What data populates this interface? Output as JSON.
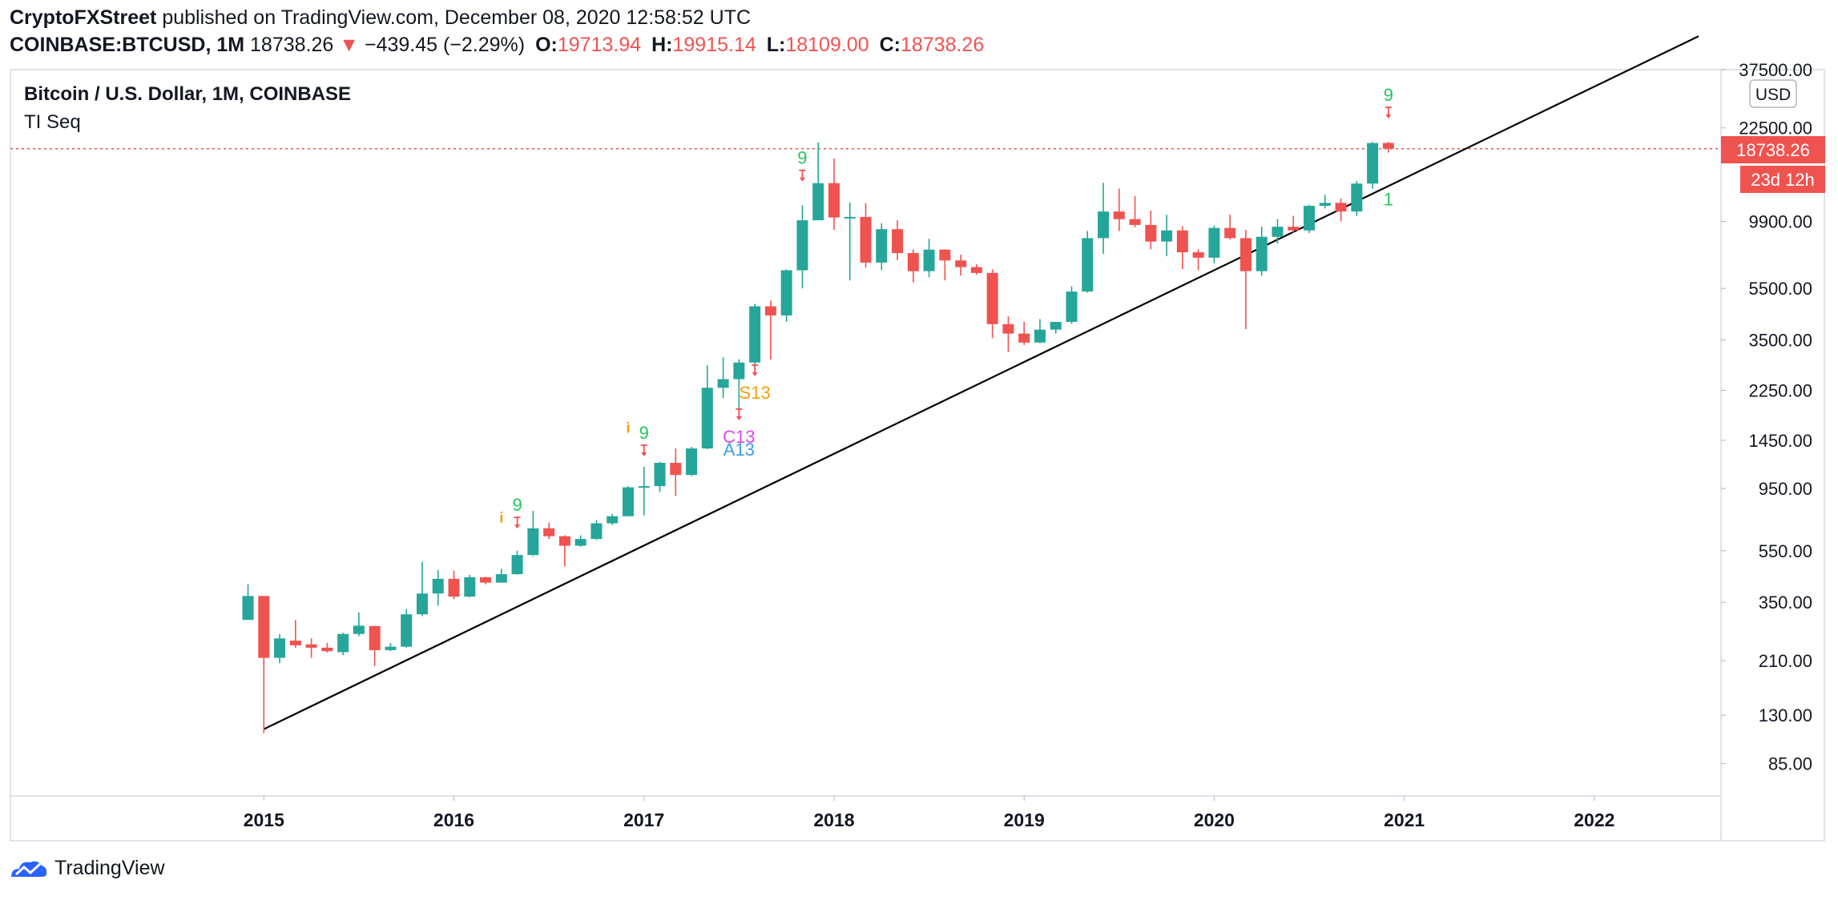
{
  "header": {
    "publisher": "CryptoFXStreet",
    "published_text": "published on TradingView.com, December 08, 2020 12:58:52 UTC",
    "symbol": "COINBASE:BTCUSD, 1M",
    "last": "18738.26",
    "change": "−439.45 (−2.29%)",
    "o_label": "O:",
    "o": "19713.94",
    "h_label": "H:",
    "h": "19915.14",
    "l_label": "L:",
    "l": "18109.00",
    "c_label": "C:",
    "c": "18738.26"
  },
  "pane": {
    "title": "Bitcoin / U.S. Dollar, 1M, COINBASE",
    "indicator": "TI Seq",
    "currency": "USD",
    "price_tag": "18738.26",
    "countdown_tag": "23d 12h"
  },
  "brand": {
    "name": "TradingView"
  },
  "colors": {
    "up": "#26a69a",
    "down": "#ef5350",
    "green_label": "#22c55e",
    "orange_label": "#f59e0b",
    "magenta_label": "#d946ef",
    "blue_label": "#3b9fe0"
  },
  "chart_data": {
    "type": "candlestick",
    "y_scale": "log",
    "ylim": [
      64,
      37500
    ],
    "y_ticks": [
      "37500.00",
      "22500.00",
      "9900.00",
      "5500.00",
      "3500.00",
      "2250.00",
      "1450.00",
      "950.00",
      "550.00",
      "350.00",
      "210.00",
      "130.00",
      "85.00"
    ],
    "x_ticks": [
      "2015",
      "2016",
      "2017",
      "2018",
      "2019",
      "2020",
      "2021",
      "2022"
    ],
    "xlim": [
      "2013-09",
      "2022-09"
    ],
    "last_price": 18738.26,
    "candles": [
      {
        "t": "2014-12",
        "o": 300,
        "h": 410,
        "l": 300,
        "c": 370
      },
      {
        "t": "2015-01",
        "o": 370,
        "h": 370,
        "l": 111,
        "c": 215
      },
      {
        "t": "2015-02",
        "o": 215,
        "h": 265,
        "l": 205,
        "c": 255
      },
      {
        "t": "2015-03",
        "o": 250,
        "h": 300,
        "l": 235,
        "c": 240
      },
      {
        "t": "2015-04",
        "o": 242,
        "h": 255,
        "l": 215,
        "c": 235
      },
      {
        "t": "2015-05",
        "o": 235,
        "h": 245,
        "l": 225,
        "c": 228
      },
      {
        "t": "2015-06",
        "o": 226,
        "h": 268,
        "l": 220,
        "c": 265
      },
      {
        "t": "2015-07",
        "o": 265,
        "h": 320,
        "l": 260,
        "c": 285
      },
      {
        "t": "2015-08",
        "o": 284,
        "h": 285,
        "l": 200,
        "c": 230
      },
      {
        "t": "2015-09",
        "o": 230,
        "h": 245,
        "l": 228,
        "c": 237
      },
      {
        "t": "2015-10",
        "o": 237,
        "h": 330,
        "l": 235,
        "c": 315
      },
      {
        "t": "2015-11",
        "o": 315,
        "h": 500,
        "l": 310,
        "c": 378
      },
      {
        "t": "2015-12",
        "o": 378,
        "h": 465,
        "l": 340,
        "c": 430
      },
      {
        "t": "2016-01",
        "o": 430,
        "h": 462,
        "l": 360,
        "c": 368
      },
      {
        "t": "2016-02",
        "o": 368,
        "h": 445,
        "l": 365,
        "c": 436
      },
      {
        "t": "2016-03",
        "o": 436,
        "h": 438,
        "l": 410,
        "c": 416
      },
      {
        "t": "2016-04",
        "o": 416,
        "h": 470,
        "l": 415,
        "c": 448
      },
      {
        "t": "2016-05",
        "o": 448,
        "h": 550,
        "l": 445,
        "c": 530
      },
      {
        "t": "2016-06",
        "o": 530,
        "h": 780,
        "l": 525,
        "c": 670
      },
      {
        "t": "2016-07",
        "o": 670,
        "h": 705,
        "l": 610,
        "c": 625
      },
      {
        "t": "2016-08",
        "o": 625,
        "h": 630,
        "l": 480,
        "c": 575
      },
      {
        "t": "2016-09",
        "o": 575,
        "h": 630,
        "l": 570,
        "c": 610
      },
      {
        "t": "2016-10",
        "o": 610,
        "h": 720,
        "l": 605,
        "c": 700
      },
      {
        "t": "2016-11",
        "o": 700,
        "h": 760,
        "l": 690,
        "c": 745
      },
      {
        "t": "2016-12",
        "o": 745,
        "h": 970,
        "l": 745,
        "c": 960
      },
      {
        "t": "2017-01",
        "o": 960,
        "h": 1150,
        "l": 750,
        "c": 970
      },
      {
        "t": "2017-02",
        "o": 970,
        "h": 1200,
        "l": 920,
        "c": 1190
      },
      {
        "t": "2017-03",
        "o": 1190,
        "h": 1350,
        "l": 890,
        "c": 1070
      },
      {
        "t": "2017-04",
        "o": 1070,
        "h": 1370,
        "l": 1060,
        "c": 1350
      },
      {
        "t": "2017-05",
        "o": 1350,
        "h": 2800,
        "l": 1340,
        "c": 2300
      },
      {
        "t": "2017-06",
        "o": 2300,
        "h": 3000,
        "l": 2100,
        "c": 2480
      },
      {
        "t": "2017-07",
        "o": 2480,
        "h": 2950,
        "l": 1830,
        "c": 2870
      },
      {
        "t": "2017-08",
        "o": 2870,
        "h": 4800,
        "l": 2700,
        "c": 4700
      },
      {
        "t": "2017-09",
        "o": 4700,
        "h": 4950,
        "l": 2950,
        "c": 4340
      },
      {
        "t": "2017-10",
        "o": 4340,
        "h": 6500,
        "l": 4100,
        "c": 6450
      },
      {
        "t": "2017-11",
        "o": 6450,
        "h": 11400,
        "l": 5500,
        "c": 10000
      },
      {
        "t": "2017-12",
        "o": 10000,
        "h": 19800,
        "l": 10000,
        "c": 13850
      },
      {
        "t": "2018-01",
        "o": 13850,
        "h": 17200,
        "l": 9200,
        "c": 10250
      },
      {
        "t": "2018-02",
        "o": 10250,
        "h": 11700,
        "l": 5900,
        "c": 10300
      },
      {
        "t": "2018-03",
        "o": 10300,
        "h": 11600,
        "l": 6600,
        "c": 6900
      },
      {
        "t": "2018-04",
        "o": 6900,
        "h": 9750,
        "l": 6450,
        "c": 9250
      },
      {
        "t": "2018-05",
        "o": 9250,
        "h": 10000,
        "l": 7050,
        "c": 7500
      },
      {
        "t": "2018-06",
        "o": 7500,
        "h": 7750,
        "l": 5800,
        "c": 6400
      },
      {
        "t": "2018-07",
        "o": 6400,
        "h": 8500,
        "l": 6070,
        "c": 7730
      },
      {
        "t": "2018-08",
        "o": 7730,
        "h": 7750,
        "l": 5900,
        "c": 7030
      },
      {
        "t": "2018-09",
        "o": 7030,
        "h": 7400,
        "l": 6150,
        "c": 6630
      },
      {
        "t": "2018-10",
        "o": 6630,
        "h": 6800,
        "l": 6200,
        "c": 6300
      },
      {
        "t": "2018-11",
        "o": 6300,
        "h": 6500,
        "l": 3550,
        "c": 4020
      },
      {
        "t": "2018-12",
        "o": 4020,
        "h": 4300,
        "l": 3150,
        "c": 3700
      },
      {
        "t": "2019-01",
        "o": 3700,
        "h": 4100,
        "l": 3350,
        "c": 3420
      },
      {
        "t": "2019-02",
        "o": 3420,
        "h": 4200,
        "l": 3400,
        "c": 3830
      },
      {
        "t": "2019-03",
        "o": 3830,
        "h": 4100,
        "l": 3700,
        "c": 4100
      },
      {
        "t": "2019-04",
        "o": 4100,
        "h": 5600,
        "l": 4030,
        "c": 5350
      },
      {
        "t": "2019-05",
        "o": 5350,
        "h": 9100,
        "l": 5300,
        "c": 8550
      },
      {
        "t": "2019-06",
        "o": 8550,
        "h": 13900,
        "l": 7450,
        "c": 10800
      },
      {
        "t": "2019-07",
        "o": 10800,
        "h": 13200,
        "l": 9100,
        "c": 10100
      },
      {
        "t": "2019-08",
        "o": 10100,
        "h": 12350,
        "l": 9400,
        "c": 9600
      },
      {
        "t": "2019-09",
        "o": 9600,
        "h": 10900,
        "l": 7750,
        "c": 8300
      },
      {
        "t": "2019-10",
        "o": 8300,
        "h": 10500,
        "l": 7300,
        "c": 9150
      },
      {
        "t": "2019-11",
        "o": 9150,
        "h": 9500,
        "l": 6500,
        "c": 7550
      },
      {
        "t": "2019-12",
        "o": 7550,
        "h": 7750,
        "l": 6450,
        "c": 7200
      },
      {
        "t": "2020-01",
        "o": 7200,
        "h": 9550,
        "l": 6850,
        "c": 9350
      },
      {
        "t": "2020-02",
        "o": 9350,
        "h": 10500,
        "l": 8450,
        "c": 8550
      },
      {
        "t": "2020-03",
        "o": 8550,
        "h": 9200,
        "l": 3850,
        "c": 6400
      },
      {
        "t": "2020-04",
        "o": 6400,
        "h": 9450,
        "l": 6150,
        "c": 8650
      },
      {
        "t": "2020-05",
        "o": 8650,
        "h": 10100,
        "l": 8150,
        "c": 9450
      },
      {
        "t": "2020-06",
        "o": 9450,
        "h": 10400,
        "l": 8950,
        "c": 9150
      },
      {
        "t": "2020-07",
        "o": 9150,
        "h": 11450,
        "l": 8950,
        "c": 11350
      },
      {
        "t": "2020-08",
        "o": 11350,
        "h": 12500,
        "l": 11100,
        "c": 11650
      },
      {
        "t": "2020-09",
        "o": 11650,
        "h": 12100,
        "l": 9900,
        "c": 10800
      },
      {
        "t": "2020-10",
        "o": 10800,
        "h": 14100,
        "l": 10400,
        "c": 13800
      },
      {
        "t": "2020-11",
        "o": 13800,
        "h": 19900,
        "l": 13200,
        "c": 19700
      },
      {
        "t": "2020-12",
        "o": 19713.94,
        "h": 19915.14,
        "l": 18109,
        "c": 18738.26
      }
    ],
    "annotations": [
      {
        "t": "2016-04",
        "text": "i",
        "color": "orange",
        "pos": "above",
        "price": 705,
        "arrow": false
      },
      {
        "t": "2016-05",
        "text": "9",
        "color": "green",
        "pos": "above",
        "price": 780,
        "arrow": true
      },
      {
        "t": "2016-12",
        "text": "i",
        "color": "orange",
        "pos": "above",
        "price": 1550,
        "arrow": false
      },
      {
        "t": "2017-01",
        "text": "9",
        "color": "green",
        "pos": "above",
        "price": 1470,
        "arrow": true
      },
      {
        "t": "2017-07",
        "text": "C13",
        "color": "magenta",
        "pos": "below",
        "price": 1420,
        "arrow": true
      },
      {
        "t": "2017-07",
        "text": "A13",
        "color": "blue",
        "pos": "below",
        "price": 1270,
        "arrow": false
      },
      {
        "t": "2017-08",
        "text": "S13",
        "color": "orange",
        "pos": "below",
        "price": 2090,
        "arrow": true
      },
      {
        "t": "2017-11",
        "text": "9",
        "color": "green",
        "pos": "above",
        "price": 16400,
        "arrow": true
      },
      {
        "t": "2020-12",
        "text": "9",
        "color": "green",
        "pos": "above",
        "price": 28500,
        "arrow": true
      },
      {
        "t": "2020-12",
        "text": "1",
        "color": "green",
        "pos": "below",
        "price": 11400,
        "arrow": false
      }
    ],
    "trendline": [
      {
        "t": "2015-01",
        "price": 115
      },
      {
        "t": "2021-06",
        "price": 20200
      }
    ]
  }
}
